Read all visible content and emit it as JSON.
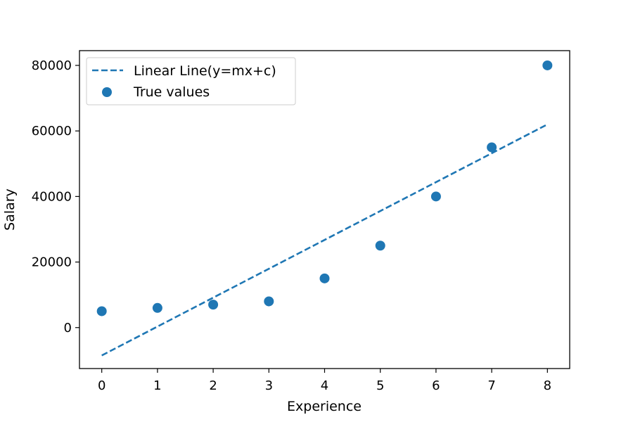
{
  "chart_data": {
    "type": "scatter",
    "title": "",
    "xlabel": "Experience",
    "ylabel": "Salary",
    "xlim": [
      -0.4,
      8.4
    ],
    "ylim": [
      -12500,
      84500
    ],
    "xticks": [
      0,
      1,
      2,
      3,
      4,
      5,
      6,
      7,
      8
    ],
    "yticks": [
      0,
      20000,
      40000,
      60000,
      80000
    ],
    "grid": false,
    "legend_position": "upper left",
    "series": [
      {
        "name": "Linear Line(y=mx+c)",
        "kind": "line",
        "style": "dashed",
        "color": "#1f77b4",
        "x": [
          0,
          8
        ],
        "y": [
          -8500,
          62000
        ]
      },
      {
        "name": "True values",
        "kind": "scatter",
        "color": "#1f77b4",
        "x": [
          0,
          1,
          2,
          3,
          4,
          5,
          6,
          7,
          8
        ],
        "y": [
          5000,
          6000,
          7000,
          8000,
          15000,
          25000,
          40000,
          55000,
          80000
        ]
      }
    ]
  }
}
